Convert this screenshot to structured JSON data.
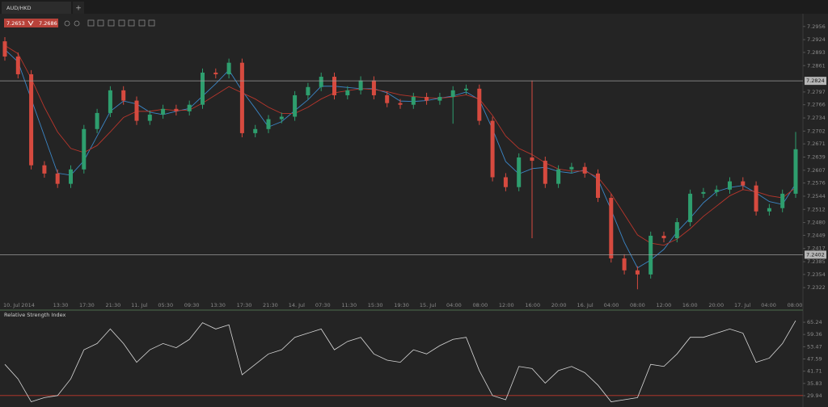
{
  "header": {
    "tab": "AUD/HKD",
    "tab_add": "+",
    "bid": "7.2653",
    "ask": "7.2686"
  },
  "chart_data": [
    {
      "type": "candlestick",
      "up_color": "#2e9e6e",
      "down_color": "#d64a3f",
      "ylim": [
        7.2291,
        7.2985
      ],
      "yticks": [
        7.2956,
        7.2924,
        7.2893,
        7.2861,
        7.2797,
        7.2766,
        7.2734,
        7.2702,
        7.2671,
        7.2639,
        7.2607,
        7.2576,
        7.2544,
        7.2512,
        {
          "value": 7.248,
          "label": "7.2480"
        },
        7.2449,
        7.2417,
        7.2385,
        7.2354,
        7.2322
      ],
      "levels": [
        7.2824,
        7.2402
      ],
      "x_labels": [
        "10. Jul 2014",
        "13:30",
        "17:30",
        "21:30",
        "11. Jul",
        "05:30",
        "09:30",
        "13:30",
        "17:30",
        "21:30",
        "14. Jul",
        "07:30",
        "11:30",
        "15:30",
        "19:30",
        "15. Jul",
        "04:00",
        "08:00",
        "12:00",
        "16:00",
        "20:00",
        "16. Jul",
        "04:00",
        "08:00",
        "12:00",
        "16:00",
        "20:00",
        "17. Jul",
        "04:00",
        "08:00"
      ],
      "open": [
        7.292,
        7.2883,
        7.284,
        7.2619,
        7.2599,
        7.2574,
        7.2609,
        7.2707,
        7.2746,
        7.2801,
        7.2776,
        7.2727,
        7.2742,
        7.2756,
        7.275,
        7.2766,
        7.2844,
        7.284,
        7.2868,
        7.2697,
        7.2707,
        7.2731,
        7.2737,
        7.2789,
        7.2809,
        7.2834,
        7.2789,
        7.2801,
        7.2825,
        7.2789,
        7.277,
        7.2766,
        7.2785,
        7.2776,
        7.2785,
        7.2801,
        7.2805,
        7.2727,
        7.259,
        7.2566,
        7.2638,
        7.263,
        7.2574,
        7.2609,
        7.2615,
        7.2599,
        7.254,
        7.2393,
        7.2364,
        7.2354,
        7.2448,
        7.2442,
        7.2481,
        7.255,
        7.2554,
        7.256,
        7.258,
        7.257,
        7.2507,
        7.2515,
        7.255
      ],
      "high": [
        7.293,
        7.2893,
        7.285,
        7.2629,
        7.2609,
        7.2619,
        7.2717,
        7.2756,
        7.2811,
        7.2811,
        7.2786,
        7.2752,
        7.2766,
        7.2766,
        7.2776,
        7.2854,
        7.2854,
        7.2878,
        7.2878,
        7.2717,
        7.2741,
        7.2747,
        7.2799,
        7.2819,
        7.2844,
        7.2844,
        7.2811,
        7.2835,
        7.2835,
        7.2799,
        7.278,
        7.2795,
        7.2795,
        7.2795,
        7.2811,
        7.2815,
        7.2815,
        7.2737,
        7.26,
        7.2648,
        7.2825,
        7.264,
        7.2619,
        7.2625,
        7.2625,
        7.2609,
        7.255,
        7.2403,
        7.2374,
        7.2458,
        7.2458,
        7.2491,
        7.256,
        7.2564,
        7.257,
        7.259,
        7.259,
        7.258,
        7.2525,
        7.256,
        7.27
      ],
      "low": [
        7.2873,
        7.283,
        7.2609,
        7.2589,
        7.2564,
        7.2564,
        7.2599,
        7.2697,
        7.2736,
        7.2766,
        7.2717,
        7.2717,
        7.2732,
        7.274,
        7.274,
        7.2756,
        7.283,
        7.283,
        7.2687,
        7.2687,
        7.2697,
        7.2721,
        7.2727,
        7.2779,
        7.2799,
        7.2779,
        7.2779,
        7.2791,
        7.2779,
        7.276,
        7.2756,
        7.2756,
        7.2766,
        7.2766,
        7.272,
        7.2791,
        7.2717,
        7.258,
        7.2556,
        7.2556,
        7.2442,
        7.2564,
        7.2564,
        7.2599,
        7.2589,
        7.253,
        7.2383,
        7.2354,
        7.2318,
        7.2344,
        7.2432,
        7.2432,
        7.2471,
        7.254,
        7.2544,
        7.255,
        7.256,
        7.2497,
        7.2497,
        7.2505,
        7.254
      ],
      "close": [
        7.2883,
        7.284,
        7.2619,
        7.2599,
        7.2574,
        7.2609,
        7.2707,
        7.2746,
        7.2801,
        7.2776,
        7.2727,
        7.2742,
        7.2756,
        7.275,
        7.2766,
        7.2844,
        7.284,
        7.2868,
        7.2697,
        7.2707,
        7.2731,
        7.2737,
        7.2789,
        7.2809,
        7.2834,
        7.2789,
        7.2801,
        7.2825,
        7.2789,
        7.277,
        7.2766,
        7.2785,
        7.2776,
        7.2785,
        7.2801,
        7.2805,
        7.2727,
        7.259,
        7.2566,
        7.2638,
        7.263,
        7.2574,
        7.2609,
        7.2615,
        7.2599,
        7.254,
        7.2393,
        7.2364,
        7.2354,
        7.2448,
        7.2442,
        7.2481,
        7.255,
        7.2554,
        7.256,
        7.258,
        7.257,
        7.2507,
        7.2515,
        7.255,
        7.2658
      ],
      "overlays": [
        {
          "color": "#3b86c6",
          "values": [
            7.29,
            7.287,
            7.278,
            7.269,
            7.26,
            7.2595,
            7.263,
            7.269,
            7.275,
            7.2775,
            7.2768,
            7.2748,
            7.2742,
            7.275,
            7.2757,
            7.2787,
            7.2817,
            7.285,
            7.28,
            7.2757,
            7.2712,
            7.2725,
            7.2752,
            7.2778,
            7.2811,
            7.2811,
            7.2808,
            7.2805,
            7.2805,
            7.2795,
            7.2775,
            7.2774,
            7.2776,
            7.2782,
            7.2787,
            7.2797,
            7.2778,
            7.2707,
            7.2628,
            7.2598,
            7.2611,
            7.2614,
            7.2604,
            7.26,
            7.2608,
            7.2585,
            7.2511,
            7.2432,
            7.237,
            7.2389,
            7.2415,
            7.2457,
            7.2491,
            7.2528,
            7.2555,
            7.2565,
            7.257,
            7.2552,
            7.2531,
            7.2524,
            7.2574
          ]
        },
        {
          "color": "#b8362c",
          "values": [
            7.291,
            7.289,
            7.283,
            7.276,
            7.27,
            7.266,
            7.265,
            7.2667,
            7.27,
            7.2735,
            7.275,
            7.275,
            7.2755,
            7.2752,
            7.2753,
            7.277,
            7.279,
            7.281,
            7.2795,
            7.278,
            7.276,
            7.2745,
            7.2745,
            7.276,
            7.278,
            7.2795,
            7.28,
            7.2805,
            7.2803,
            7.2798,
            7.279,
            7.2786,
            7.2783,
            7.2782,
            7.2785,
            7.279,
            7.278,
            7.274,
            7.269,
            7.266,
            7.2645,
            7.2625,
            7.261,
            7.2605,
            7.2605,
            7.259,
            7.255,
            7.25,
            7.245,
            7.243,
            7.2425,
            7.244,
            7.2465,
            7.2495,
            7.252,
            7.2545,
            7.256,
            7.2555,
            7.2545,
            7.254,
            7.2565
          ]
        }
      ]
    },
    {
      "type": "line",
      "title": "Relative Strength Index",
      "color": "#d8d8d8",
      "level": 30,
      "level_color": "#c0392b",
      "ylim": [
        24.5,
        70.3
      ],
      "yticks": [
        65.24,
        59.36,
        53.47,
        47.59,
        41.71,
        35.83,
        29.94
      ],
      "values": [
        45,
        38,
        27,
        29,
        30,
        38,
        52,
        55,
        62,
        55,
        46,
        52,
        55,
        53,
        57,
        65,
        62,
        64,
        40,
        45,
        50,
        52,
        58,
        60,
        62,
        52,
        56,
        58,
        50,
        47,
        46,
        52,
        50,
        54,
        57,
        58,
        42,
        30,
        28,
        44,
        43,
        36,
        42,
        44,
        41,
        35,
        27,
        28,
        29,
        45,
        44,
        50,
        58,
        58,
        60,
        62,
        60,
        46,
        48,
        55,
        66
      ]
    }
  ]
}
